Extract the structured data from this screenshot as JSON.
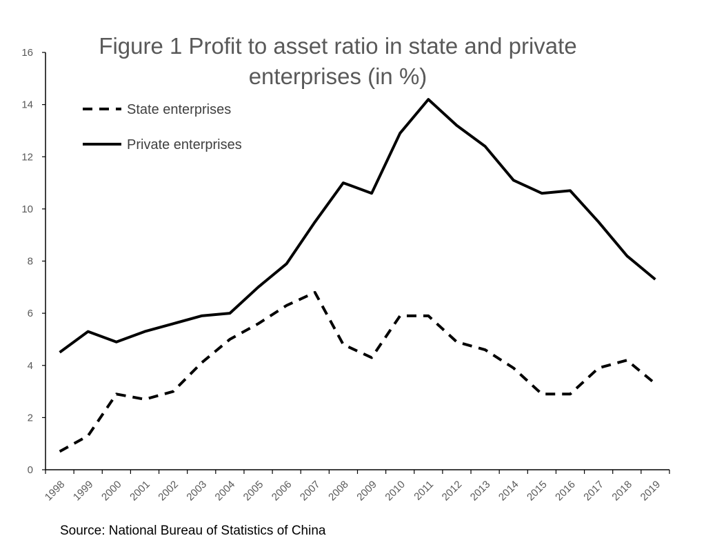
{
  "chart_data": {
    "type": "line",
    "title_line1": "Figure 1 Profit to asset ratio in state and private",
    "title_line2": "enterprises (in %)",
    "xlabel": "",
    "ylabel": "",
    "categories": [
      "1998",
      "1999",
      "2000",
      "2001",
      "2002",
      "2003",
      "2004",
      "2005",
      "2006",
      "2007",
      "2008",
      "2009",
      "2010",
      "2011",
      "2012",
      "2013",
      "2014",
      "2015",
      "2016",
      "2017",
      "2018",
      "2019"
    ],
    "ylim": [
      0,
      16
    ],
    "yticks": [
      "0",
      "2",
      "4",
      "6",
      "8",
      "10",
      "12",
      "14",
      "16"
    ],
    "grid": false,
    "legend_position": "top-left",
    "series": [
      {
        "name": "State enterprises",
        "style": "dashed",
        "color": "#000000",
        "values": [
          0.7,
          1.3,
          2.9,
          2.7,
          3.0,
          4.1,
          5.0,
          5.6,
          6.3,
          6.8,
          4.8,
          4.3,
          5.9,
          5.9,
          4.9,
          4.6,
          3.9,
          2.9,
          2.9,
          3.9,
          4.2,
          3.3
        ]
      },
      {
        "name": "Private enterprises",
        "style": "solid",
        "color": "#000000",
        "values": [
          4.5,
          5.3,
          4.9,
          5.3,
          5.6,
          5.9,
          6.0,
          7.0,
          7.9,
          9.5,
          11.0,
          10.6,
          12.9,
          14.2,
          13.2,
          12.4,
          11.1,
          10.6,
          10.7,
          9.5,
          8.2,
          7.3
        ]
      }
    ]
  },
  "source": "Source: National Bureau of Statistics of China"
}
